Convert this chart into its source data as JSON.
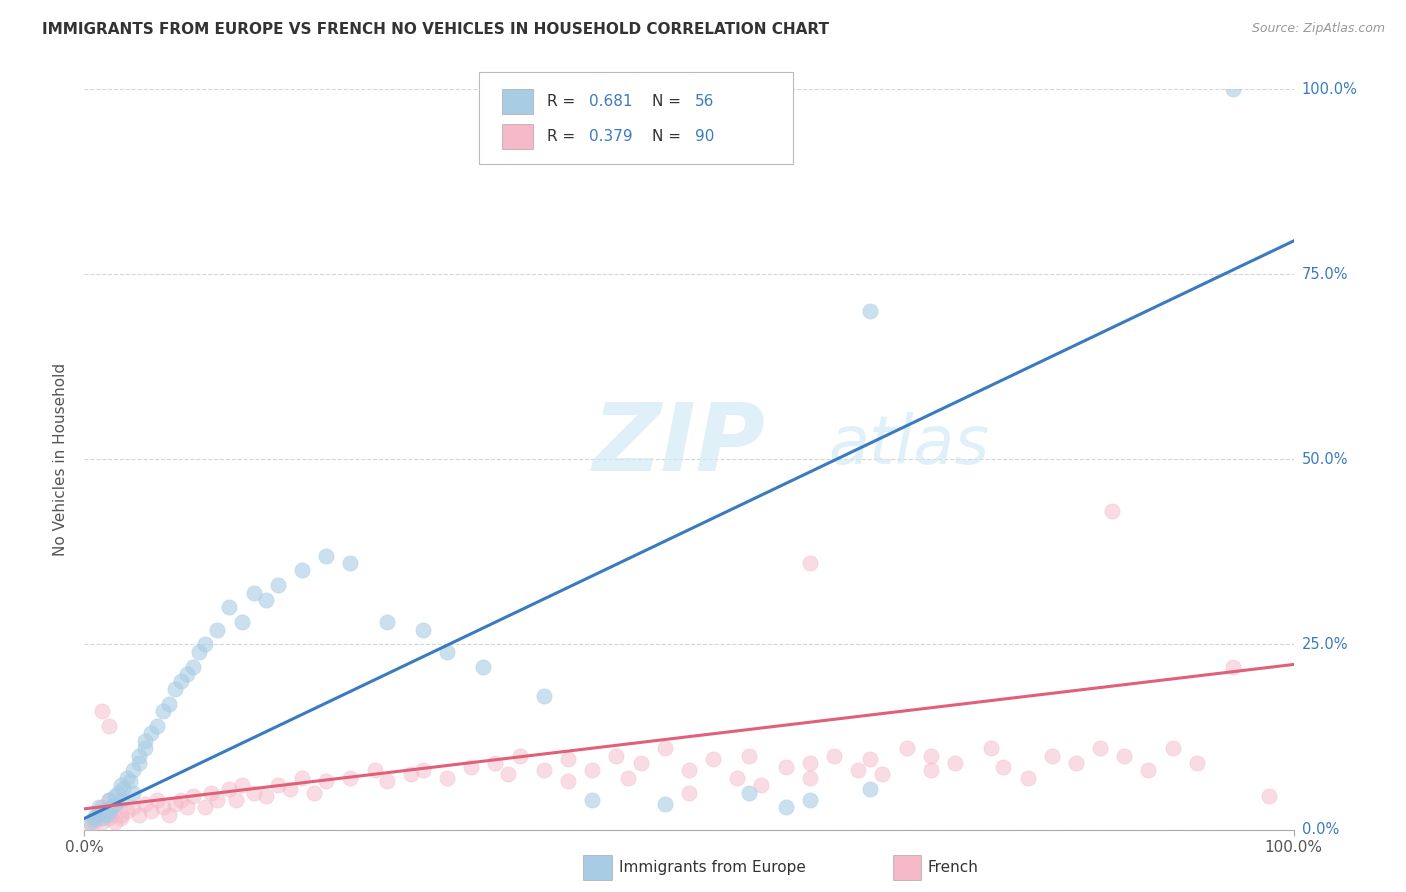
{
  "title": "IMMIGRANTS FROM EUROPE VS FRENCH NO VEHICLES IN HOUSEHOLD CORRELATION CHART",
  "source": "Source: ZipAtlas.com",
  "ylabel": "No Vehicles in Household",
  "ytick_labels": [
    "0.0%",
    "25.0%",
    "50.0%",
    "75.0%",
    "100.0%"
  ],
  "ytick_values": [
    0,
    25,
    50,
    75,
    100
  ],
  "xlim": [
    0,
    100
  ],
  "ylim": [
    0,
    100
  ],
  "legend_r1": "0.681",
  "legend_n1": "56",
  "legend_r2": "0.379",
  "legend_n2": "90",
  "blue_color": "#a8cce4",
  "pink_color": "#f4b8c8",
  "blue_line_color": "#3a7bbf",
  "pink_line_color": "#e0607a",
  "blue_slope": 0.78,
  "blue_intercept": 1.5,
  "pink_slope": 0.195,
  "pink_intercept": 2.8,
  "blue_scatter": [
    [
      0.5,
      1.0
    ],
    [
      0.8,
      1.5
    ],
    [
      1.0,
      2.0
    ],
    [
      1.2,
      3.0
    ],
    [
      1.5,
      1.5
    ],
    [
      1.5,
      2.5
    ],
    [
      1.8,
      2.0
    ],
    [
      2.0,
      2.5
    ],
    [
      2.0,
      4.0
    ],
    [
      2.2,
      3.0
    ],
    [
      2.5,
      3.5
    ],
    [
      2.5,
      4.5
    ],
    [
      2.8,
      5.0
    ],
    [
      3.0,
      4.0
    ],
    [
      3.0,
      6.0
    ],
    [
      3.2,
      5.5
    ],
    [
      3.5,
      7.0
    ],
    [
      3.8,
      6.5
    ],
    [
      4.0,
      8.0
    ],
    [
      4.0,
      5.0
    ],
    [
      4.5,
      9.0
    ],
    [
      4.5,
      10.0
    ],
    [
      5.0,
      11.0
    ],
    [
      5.0,
      12.0
    ],
    [
      5.5,
      13.0
    ],
    [
      6.0,
      14.0
    ],
    [
      6.5,
      16.0
    ],
    [
      7.0,
      17.0
    ],
    [
      7.5,
      19.0
    ],
    [
      8.0,
      20.0
    ],
    [
      8.5,
      21.0
    ],
    [
      9.0,
      22.0
    ],
    [
      9.5,
      24.0
    ],
    [
      10.0,
      25.0
    ],
    [
      11.0,
      27.0
    ],
    [
      12.0,
      30.0
    ],
    [
      13.0,
      28.0
    ],
    [
      14.0,
      32.0
    ],
    [
      15.0,
      31.0
    ],
    [
      16.0,
      33.0
    ],
    [
      18.0,
      35.0
    ],
    [
      20.0,
      37.0
    ],
    [
      22.0,
      36.0
    ],
    [
      25.0,
      28.0
    ],
    [
      28.0,
      27.0
    ],
    [
      30.0,
      24.0
    ],
    [
      33.0,
      22.0
    ],
    [
      38.0,
      18.0
    ],
    [
      42.0,
      4.0
    ],
    [
      48.0,
      3.5
    ],
    [
      55.0,
      5.0
    ],
    [
      58.0,
      3.0
    ],
    [
      60.0,
      4.0
    ],
    [
      65.0,
      5.5
    ],
    [
      95.0,
      100.0
    ],
    [
      65.0,
      70.0
    ]
  ],
  "pink_scatter": [
    [
      0.5,
      0.5
    ],
    [
      0.8,
      1.0
    ],
    [
      1.0,
      1.5
    ],
    [
      1.2,
      2.0
    ],
    [
      1.5,
      1.0
    ],
    [
      1.5,
      3.0
    ],
    [
      1.8,
      2.5
    ],
    [
      2.0,
      1.5
    ],
    [
      2.0,
      4.0
    ],
    [
      2.2,
      2.0
    ],
    [
      2.5,
      1.0
    ],
    [
      2.5,
      3.5
    ],
    [
      3.0,
      2.0
    ],
    [
      3.0,
      1.5
    ],
    [
      3.5,
      2.5
    ],
    [
      4.0,
      3.0
    ],
    [
      4.5,
      2.0
    ],
    [
      5.0,
      3.5
    ],
    [
      5.5,
      2.5
    ],
    [
      6.0,
      4.0
    ],
    [
      6.5,
      3.0
    ],
    [
      7.0,
      2.0
    ],
    [
      7.5,
      3.5
    ],
    [
      8.0,
      4.0
    ],
    [
      8.5,
      3.0
    ],
    [
      9.0,
      4.5
    ],
    [
      10.0,
      3.0
    ],
    [
      10.5,
      5.0
    ],
    [
      11.0,
      4.0
    ],
    [
      12.0,
      5.5
    ],
    [
      12.5,
      4.0
    ],
    [
      13.0,
      6.0
    ],
    [
      14.0,
      5.0
    ],
    [
      15.0,
      4.5
    ],
    [
      16.0,
      6.0
    ],
    [
      17.0,
      5.5
    ],
    [
      18.0,
      7.0
    ],
    [
      19.0,
      5.0
    ],
    [
      20.0,
      6.5
    ],
    [
      22.0,
      7.0
    ],
    [
      24.0,
      8.0
    ],
    [
      25.0,
      6.5
    ],
    [
      27.0,
      7.5
    ],
    [
      28.0,
      8.0
    ],
    [
      30.0,
      7.0
    ],
    [
      32.0,
      8.5
    ],
    [
      34.0,
      9.0
    ],
    [
      35.0,
      7.5
    ],
    [
      36.0,
      10.0
    ],
    [
      38.0,
      8.0
    ],
    [
      40.0,
      9.5
    ],
    [
      40.0,
      6.5
    ],
    [
      42.0,
      8.0
    ],
    [
      44.0,
      10.0
    ],
    [
      45.0,
      7.0
    ],
    [
      46.0,
      9.0
    ],
    [
      48.0,
      11.0
    ],
    [
      50.0,
      8.0
    ],
    [
      50.0,
      5.0
    ],
    [
      52.0,
      9.5
    ],
    [
      54.0,
      7.0
    ],
    [
      55.0,
      10.0
    ],
    [
      56.0,
      6.0
    ],
    [
      58.0,
      8.5
    ],
    [
      60.0,
      9.0
    ],
    [
      60.0,
      7.0
    ],
    [
      62.0,
      10.0
    ],
    [
      64.0,
      8.0
    ],
    [
      65.0,
      9.5
    ],
    [
      66.0,
      7.5
    ],
    [
      68.0,
      11.0
    ],
    [
      70.0,
      8.0
    ],
    [
      70.0,
      10.0
    ],
    [
      72.0,
      9.0
    ],
    [
      75.0,
      11.0
    ],
    [
      76.0,
      8.5
    ],
    [
      78.0,
      7.0
    ],
    [
      80.0,
      10.0
    ],
    [
      82.0,
      9.0
    ],
    [
      84.0,
      11.0
    ],
    [
      85.0,
      43.0
    ],
    [
      86.0,
      10.0
    ],
    [
      88.0,
      8.0
    ],
    [
      90.0,
      11.0
    ],
    [
      92.0,
      9.0
    ],
    [
      1.5,
      16.0
    ],
    [
      60.0,
      36.0
    ],
    [
      95.0,
      22.0
    ],
    [
      98.0,
      4.5
    ],
    [
      2.0,
      14.0
    ]
  ],
  "watermark_zip": "ZIP",
  "watermark_atlas": "atlas",
  "background_color": "#ffffff",
  "grid_color": "#cccccc"
}
